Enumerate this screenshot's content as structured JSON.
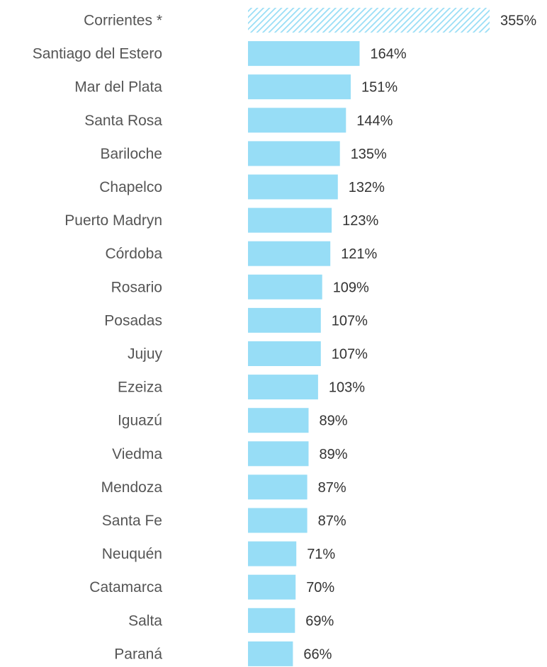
{
  "chart_data": {
    "type": "bar",
    "orientation": "horizontal",
    "title": "",
    "xlabel": "",
    "ylabel": "",
    "grid": false,
    "categories": [
      "Corrientes *",
      "Santiago del Estero",
      "Mar del Plata",
      "Santa Rosa",
      "Bariloche",
      "Chapelco",
      "Puerto Madryn",
      "Córdoba",
      "Rosario",
      "Posadas",
      "Jujuy",
      "Ezeiza",
      "Iguazú",
      "Viedma",
      "Mendoza",
      "Santa Fe",
      "Neuquén",
      "Catamarca",
      "Salta",
      "Paraná"
    ],
    "values": [
      355,
      164,
      151,
      144,
      135,
      132,
      123,
      121,
      109,
      107,
      107,
      103,
      89,
      89,
      87,
      87,
      71,
      70,
      69,
      66
    ],
    "value_labels": [
      "355%",
      "164%",
      "151%",
      "144%",
      "135%",
      "132%",
      "123%",
      "121%",
      "109%",
      "107%",
      "107%",
      "103%",
      "89%",
      "89%",
      "87%",
      "87%",
      "71%",
      "70%",
      "69%",
      "66%"
    ],
    "xlim": [
      0,
      355
    ],
    "bar_color": "#97DDF6",
    "highlight_bar_index": 0,
    "highlight_bar_style": "hatched"
  }
}
